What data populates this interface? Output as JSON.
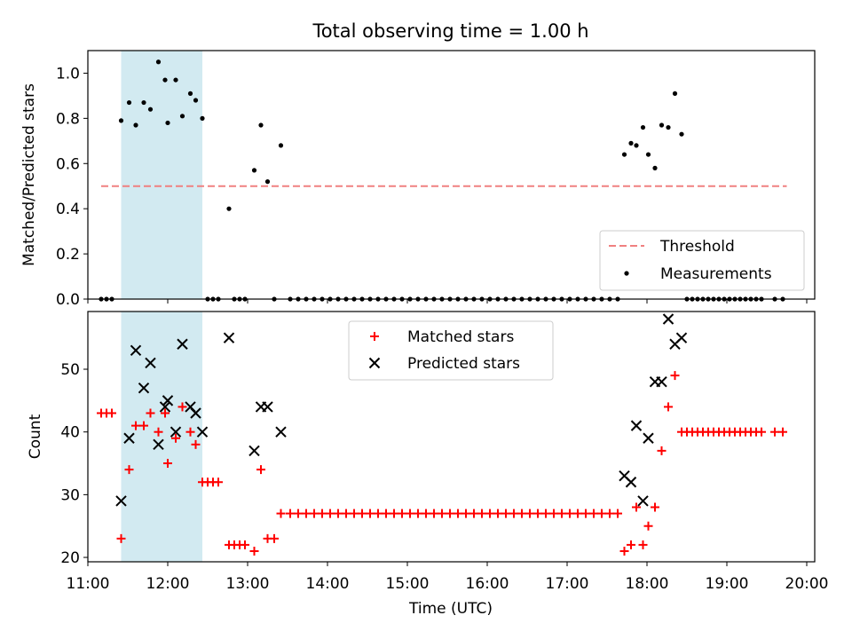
{
  "figure": {
    "title": "Total observing time = 1.00 h",
    "xlabel": "Time (UTC)",
    "shaded_interval": {
      "start": "11:25",
      "end": "12:26"
    },
    "colors": {
      "matched": "#ff0000",
      "predicted": "#000000",
      "threshold": "#f08080",
      "shade": "#add8e6"
    }
  },
  "chart_data": [
    {
      "type": "scatter",
      "ylabel": "Matched/Predicted stars",
      "xlim": [
        "11:00",
        "20:06"
      ],
      "ylim": [
        0,
        1.1
      ],
      "yticks": [
        "0.0",
        "0.2",
        "0.4",
        "0.6",
        "0.8",
        "1.0"
      ],
      "grid": false,
      "legend": {
        "position": "lower-right",
        "entries": [
          "Threshold",
          "Measurements"
        ]
      },
      "threshold": {
        "name": "Threshold",
        "y": 0.5,
        "x_range": [
          "11:10",
          "19:45"
        ]
      },
      "series": [
        {
          "name": "Measurements",
          "points": [
            [
              "11:10",
              0
            ],
            [
              "11:14",
              0
            ],
            [
              "11:18",
              0
            ],
            [
              "11:25",
              0.79
            ],
            [
              "11:31",
              0.87
            ],
            [
              "11:36",
              0.77
            ],
            [
              "11:42",
              0.87
            ],
            [
              "11:47",
              0.84
            ],
            [
              "11:53",
              1.05
            ],
            [
              "11:58",
              0.97
            ],
            [
              "12:00",
              0.78
            ],
            [
              "12:06",
              0.97
            ],
            [
              "12:11",
              0.81
            ],
            [
              "12:17",
              0.91
            ],
            [
              "12:21",
              0.88
            ],
            [
              "12:26",
              0.8
            ],
            [
              "12:30",
              0
            ],
            [
              "12:34",
              0
            ],
            [
              "12:38",
              0
            ],
            [
              "12:46",
              0.4
            ],
            [
              "12:50",
              0
            ],
            [
              "12:54",
              0
            ],
            [
              "12:58",
              0
            ],
            [
              "13:05",
              0.57
            ],
            [
              "13:10",
              0.77
            ],
            [
              "13:15",
              0.52
            ],
            [
              "13:20",
              0
            ],
            [
              "13:25",
              0.68
            ],
            [
              "13:32",
              0
            ],
            [
              "13:38",
              0
            ],
            [
              "13:44",
              0
            ],
            [
              "13:50",
              0
            ],
            [
              "13:56",
              0
            ],
            [
              "14:02",
              0
            ],
            [
              "14:08",
              0
            ],
            [
              "14:14",
              0
            ],
            [
              "14:20",
              0
            ],
            [
              "14:26",
              0
            ],
            [
              "14:32",
              0
            ],
            [
              "14:38",
              0
            ],
            [
              "14:44",
              0
            ],
            [
              "14:50",
              0
            ],
            [
              "14:56",
              0
            ],
            [
              "15:02",
              0
            ],
            [
              "15:08",
              0
            ],
            [
              "15:14",
              0
            ],
            [
              "15:20",
              0
            ],
            [
              "15:26",
              0
            ],
            [
              "15:32",
              0
            ],
            [
              "15:38",
              0
            ],
            [
              "15:44",
              0
            ],
            [
              "15:50",
              0
            ],
            [
              "15:56",
              0
            ],
            [
              "16:02",
              0
            ],
            [
              "16:08",
              0
            ],
            [
              "16:14",
              0
            ],
            [
              "16:20",
              0
            ],
            [
              "16:26",
              0
            ],
            [
              "16:32",
              0
            ],
            [
              "16:38",
              0
            ],
            [
              "16:44",
              0
            ],
            [
              "16:50",
              0
            ],
            [
              "16:56",
              0
            ],
            [
              "17:02",
              0
            ],
            [
              "17:08",
              0
            ],
            [
              "17:14",
              0
            ],
            [
              "17:20",
              0
            ],
            [
              "17:26",
              0
            ],
            [
              "17:32",
              0
            ],
            [
              "17:38",
              0
            ],
            [
              "17:43",
              0.64
            ],
            [
              "17:48",
              0.69
            ],
            [
              "17:52",
              0.68
            ],
            [
              "17:57",
              0.76
            ],
            [
              "18:01",
              0.64
            ],
            [
              "18:06",
              0.58
            ],
            [
              "18:11",
              0.77
            ],
            [
              "18:16",
              0.76
            ],
            [
              "18:21",
              0.91
            ],
            [
              "18:26",
              0.73
            ],
            [
              "18:30",
              0
            ],
            [
              "18:34",
              0
            ],
            [
              "18:38",
              0
            ],
            [
              "18:42",
              0
            ],
            [
              "18:46",
              0
            ],
            [
              "18:50",
              0
            ],
            [
              "18:54",
              0
            ],
            [
              "18:58",
              0
            ],
            [
              "19:02",
              0
            ],
            [
              "19:06",
              0
            ],
            [
              "19:10",
              0
            ],
            [
              "19:14",
              0
            ],
            [
              "19:18",
              0
            ],
            [
              "19:22",
              0
            ],
            [
              "19:26",
              0
            ],
            [
              "19:36",
              0
            ],
            [
              "19:42",
              0
            ]
          ]
        }
      ]
    },
    {
      "type": "scatter",
      "ylabel": "Count",
      "xlim": [
        "11:00",
        "20:06"
      ],
      "ylim": [
        19.3,
        59.2
      ],
      "yticks": [
        "20",
        "30",
        "40",
        "50"
      ],
      "xticks": [
        "11:00",
        "12:00",
        "13:00",
        "14:00",
        "15:00",
        "16:00",
        "17:00",
        "18:00",
        "19:00",
        "20:00"
      ],
      "grid": false,
      "legend": {
        "position": "upper-center",
        "entries": [
          "Matched stars",
          "Predicted stars"
        ]
      },
      "series": [
        {
          "name": "Matched stars",
          "marker": "plus",
          "points": [
            [
              "11:10",
              43
            ],
            [
              "11:14",
              43
            ],
            [
              "11:18",
              43
            ],
            [
              "11:25",
              23
            ],
            [
              "11:31",
              34
            ],
            [
              "11:36",
              41
            ],
            [
              "11:42",
              41
            ],
            [
              "11:47",
              43
            ],
            [
              "11:53",
              40
            ],
            [
              "11:58",
              43
            ],
            [
              "12:00",
              35
            ],
            [
              "12:06",
              39
            ],
            [
              "12:11",
              44
            ],
            [
              "12:17",
              40
            ],
            [
              "12:21",
              38
            ],
            [
              "12:26",
              32
            ],
            [
              "12:30",
              32
            ],
            [
              "12:34",
              32
            ],
            [
              "12:38",
              32
            ],
            [
              "12:46",
              22
            ],
            [
              "12:50",
              22
            ],
            [
              "12:54",
              22
            ],
            [
              "12:58",
              22
            ],
            [
              "13:05",
              21
            ],
            [
              "13:10",
              34
            ],
            [
              "13:15",
              23
            ],
            [
              "13:20",
              23
            ],
            [
              "13:25",
              27
            ],
            [
              "13:32",
              27
            ],
            [
              "13:38",
              27
            ],
            [
              "13:44",
              27
            ],
            [
              "13:50",
              27
            ],
            [
              "13:56",
              27
            ],
            [
              "14:02",
              27
            ],
            [
              "14:08",
              27
            ],
            [
              "14:14",
              27
            ],
            [
              "14:20",
              27
            ],
            [
              "14:26",
              27
            ],
            [
              "14:32",
              27
            ],
            [
              "14:38",
              27
            ],
            [
              "14:44",
              27
            ],
            [
              "14:50",
              27
            ],
            [
              "14:56",
              27
            ],
            [
              "15:02",
              27
            ],
            [
              "15:08",
              27
            ],
            [
              "15:14",
              27
            ],
            [
              "15:20",
              27
            ],
            [
              "15:26",
              27
            ],
            [
              "15:32",
              27
            ],
            [
              "15:38",
              27
            ],
            [
              "15:44",
              27
            ],
            [
              "15:50",
              27
            ],
            [
              "15:56",
              27
            ],
            [
              "16:02",
              27
            ],
            [
              "16:08",
              27
            ],
            [
              "16:14",
              27
            ],
            [
              "16:20",
              27
            ],
            [
              "16:26",
              27
            ],
            [
              "16:32",
              27
            ],
            [
              "16:38",
              27
            ],
            [
              "16:44",
              27
            ],
            [
              "16:50",
              27
            ],
            [
              "16:56",
              27
            ],
            [
              "17:02",
              27
            ],
            [
              "17:08",
              27
            ],
            [
              "17:14",
              27
            ],
            [
              "17:20",
              27
            ],
            [
              "17:26",
              27
            ],
            [
              "17:32",
              27
            ],
            [
              "17:38",
              27
            ],
            [
              "17:43",
              21
            ],
            [
              "17:48",
              22
            ],
            [
              "17:52",
              28
            ],
            [
              "17:57",
              22
            ],
            [
              "18:01",
              25
            ],
            [
              "18:06",
              28
            ],
            [
              "18:11",
              37
            ],
            [
              "18:16",
              44
            ],
            [
              "18:21",
              49
            ],
            [
              "18:26",
              40
            ],
            [
              "18:30",
              40
            ],
            [
              "18:34",
              40
            ],
            [
              "18:38",
              40
            ],
            [
              "18:42",
              40
            ],
            [
              "18:46",
              40
            ],
            [
              "18:50",
              40
            ],
            [
              "18:54",
              40
            ],
            [
              "18:58",
              40
            ],
            [
              "19:02",
              40
            ],
            [
              "19:06",
              40
            ],
            [
              "19:10",
              40
            ],
            [
              "19:14",
              40
            ],
            [
              "19:18",
              40
            ],
            [
              "19:22",
              40
            ],
            [
              "19:26",
              40
            ],
            [
              "19:36",
              40
            ],
            [
              "19:42",
              40
            ]
          ]
        },
        {
          "name": "Predicted stars",
          "marker": "x",
          "points": [
            [
              "11:25",
              29
            ],
            [
              "11:31",
              39
            ],
            [
              "11:36",
              53
            ],
            [
              "11:42",
              47
            ],
            [
              "11:47",
              51
            ],
            [
              "11:53",
              38
            ],
            [
              "11:58",
              44
            ],
            [
              "12:00",
              45
            ],
            [
              "12:06",
              40
            ],
            [
              "12:11",
              54
            ],
            [
              "12:17",
              44
            ],
            [
              "12:21",
              43
            ],
            [
              "12:26",
              40
            ],
            [
              "12:46",
              55
            ],
            [
              "13:05",
              37
            ],
            [
              "13:10",
              44
            ],
            [
              "13:15",
              44
            ],
            [
              "13:25",
              40
            ],
            [
              "17:43",
              33
            ],
            [
              "17:48",
              32
            ],
            [
              "17:52",
              41
            ],
            [
              "17:57",
              29
            ],
            [
              "18:01",
              39
            ],
            [
              "18:06",
              48
            ],
            [
              "18:11",
              48
            ],
            [
              "18:16",
              58
            ],
            [
              "18:21",
              54
            ],
            [
              "18:26",
              55
            ]
          ]
        }
      ]
    }
  ]
}
